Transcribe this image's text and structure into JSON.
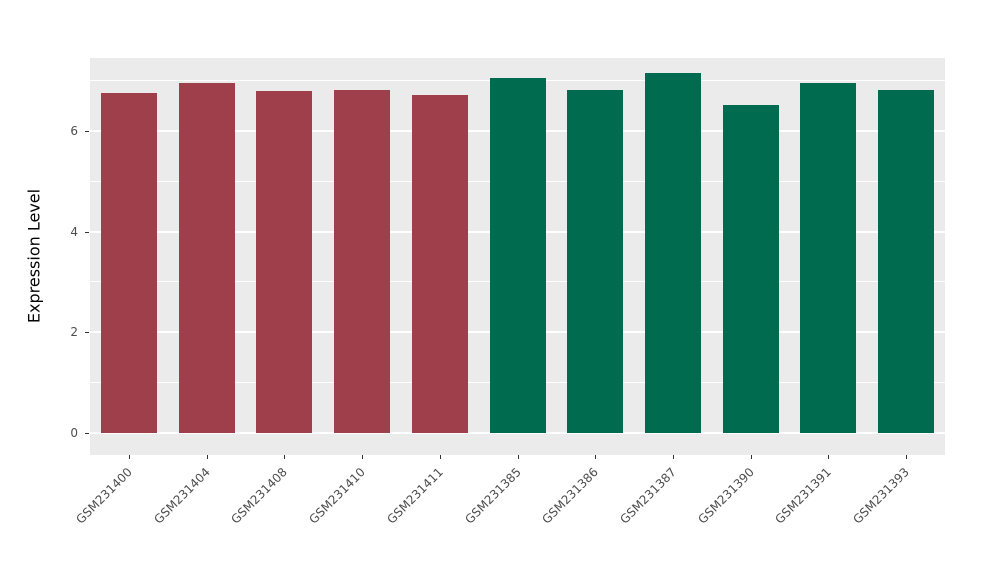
{
  "chart_data": {
    "type": "bar",
    "title": "",
    "xlabel": "",
    "ylabel": "Expression Level",
    "categories": [
      "GSM231400",
      "GSM231404",
      "GSM231408",
      "GSM231410",
      "GSM231411",
      "GSM231385",
      "GSM231386",
      "GSM231387",
      "GSM231390",
      "GSM231391",
      "GSM231393"
    ],
    "values": [
      6.75,
      6.95,
      6.8,
      6.82,
      6.72,
      7.05,
      6.82,
      7.15,
      6.52,
      6.95,
      6.82
    ],
    "bar_colors": [
      "#A03F4C",
      "#A03F4C",
      "#A03F4C",
      "#A03F4C",
      "#A03F4C",
      "#006B4E",
      "#006B4E",
      "#006B4E",
      "#006B4E",
      "#006B4E",
      "#006B4E"
    ],
    "y_ticks": [
      0,
      2,
      4,
      6
    ],
    "y_minor_ticks": [
      1,
      3,
      5,
      7
    ],
    "ylim": [
      0,
      7.5
    ],
    "grid": true,
    "legend": "none",
    "panel_background": "#EBEBEB",
    "grid_color": "#FFFFFF"
  }
}
